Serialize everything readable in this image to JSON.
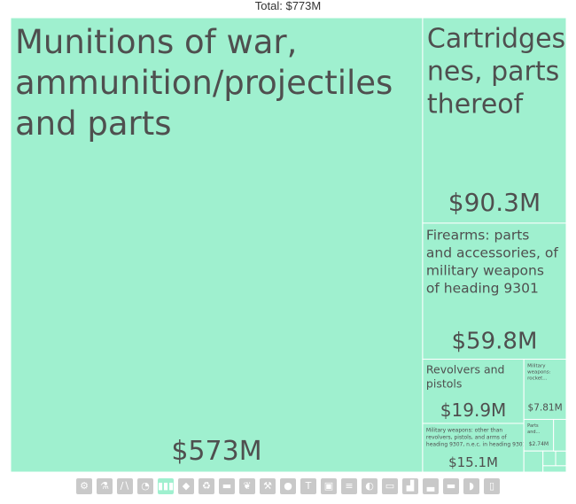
{
  "header": {
    "total_label": "Total: $773M"
  },
  "colors": {
    "tile": "#9ff0cf",
    "tile_border": "#ffffff",
    "text": "#4f4f4f",
    "icon_bg": "#c9c9c9",
    "icon_active": "#9ff0cf"
  },
  "chart_data": {
    "type": "treemap",
    "total": 773,
    "unit": "$M",
    "items": [
      {
        "name": "Munitions of war, ammunition/projectiles and parts",
        "value": 573,
        "value_label": "$573M"
      },
      {
        "name": "Cartridges nes, parts thereof",
        "value": 90.3,
        "value_label": "$90.3M"
      },
      {
        "name": "Firearms: parts and accessories, of military weapons of heading 9301",
        "value": 59.8,
        "value_label": "$59.8M"
      },
      {
        "name": "Revolvers and pistols",
        "value": 19.9,
        "value_label": "$19.9M"
      },
      {
        "name": "Military weapons: other than revolvers, pistols, and arms of heading 9307, n.e.c. in heading 9301",
        "value": 15.1,
        "value_label": "$15.1M"
      },
      {
        "name": "Military weapons: rocket...",
        "value": 7.81,
        "value_label": "$7.81M"
      },
      {
        "name": "Parts and...",
        "value": 2.74,
        "value_label": "$2.74M"
      },
      {
        "name": "",
        "value": 1.6,
        "value_label": ""
      },
      {
        "name": "",
        "value": 1.2,
        "value_label": ""
      },
      {
        "name": "",
        "value": 0.8,
        "value_label": ""
      },
      {
        "name": "",
        "value": 0.5,
        "value_label": ""
      }
    ]
  },
  "icon_bar": [
    {
      "icon": "gear-icon",
      "glyph": "⚙",
      "active": false
    },
    {
      "icon": "flask-icon",
      "glyph": "⚗",
      "active": false
    },
    {
      "icon": "road-icon",
      "glyph": "∕∖",
      "active": false
    },
    {
      "icon": "gauge-icon",
      "glyph": "◔",
      "active": false
    },
    {
      "icon": "ammunition-icon",
      "glyph": "▮▮▮",
      "active": true
    },
    {
      "icon": "diamond-icon",
      "glyph": "◆",
      "active": false
    },
    {
      "icon": "recycle-icon",
      "glyph": "♻",
      "active": false
    },
    {
      "icon": "anvil-icon",
      "glyph": "▬",
      "active": false
    },
    {
      "icon": "plant-icon",
      "glyph": "❦",
      "active": false
    },
    {
      "icon": "tools-icon",
      "glyph": "⚒",
      "active": false
    },
    {
      "icon": "fruit-icon",
      "glyph": "●",
      "active": false
    },
    {
      "icon": "shirt-icon",
      "glyph": "T",
      "active": false
    },
    {
      "icon": "box-icon",
      "glyph": "▣",
      "active": false
    },
    {
      "icon": "document-icon",
      "glyph": "≡",
      "active": false
    },
    {
      "icon": "palette-icon",
      "glyph": "◐",
      "active": false
    },
    {
      "icon": "sofa-icon",
      "glyph": "▭",
      "active": false
    },
    {
      "icon": "machine-icon",
      "glyph": "▟",
      "active": false
    },
    {
      "icon": "ship-icon",
      "glyph": "▃",
      "active": false
    },
    {
      "icon": "stone-icon",
      "glyph": "▬",
      "active": false
    },
    {
      "icon": "hide-icon",
      "glyph": "◗",
      "active": false
    },
    {
      "icon": "phone-icon",
      "glyph": "▯",
      "active": false
    }
  ]
}
